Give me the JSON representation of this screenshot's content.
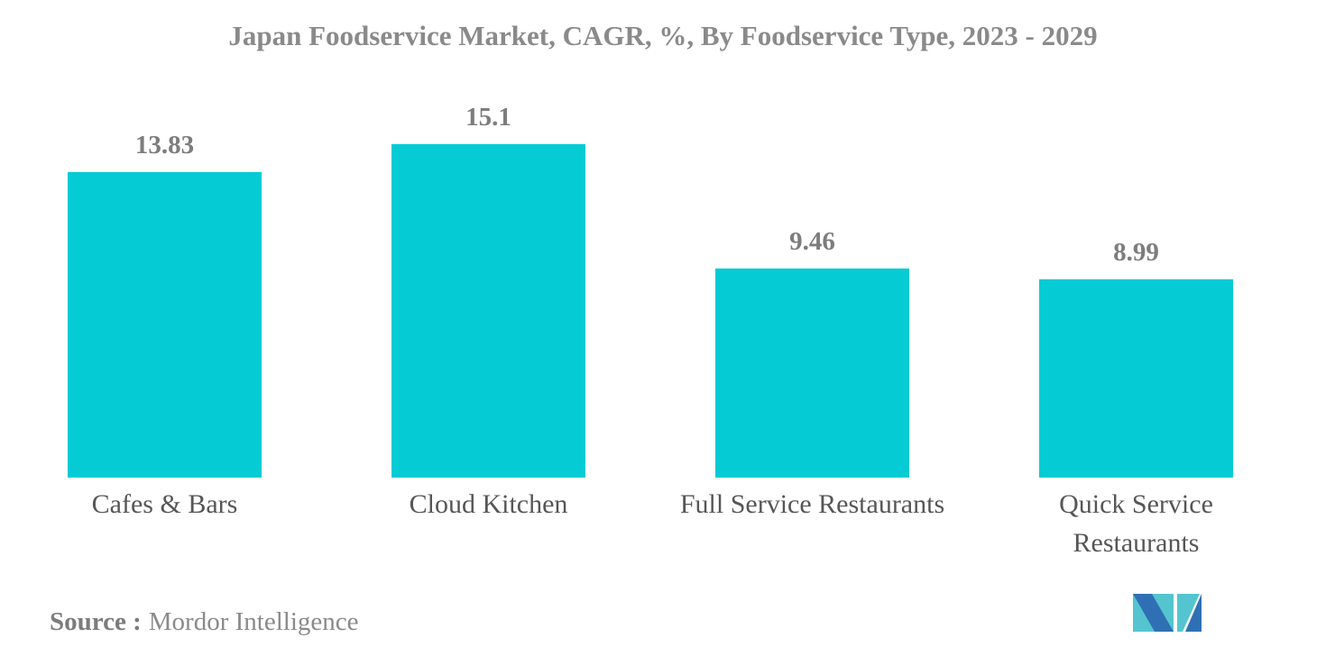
{
  "title": "Japan Foodservice Market, CAGR, %, By Foodservice Type, 2023 - 2029",
  "chart_data": {
    "type": "bar",
    "title": "Japan Foodservice Market, CAGR, %, By Foodservice Type, 2023 - 2029",
    "categories": [
      "Cafes & Bars",
      "Cloud Kitchen",
      "Full Service Restaurants",
      "Quick Service Restaurants"
    ],
    "category_lines": [
      [
        "Cafes & Bars"
      ],
      [
        "Cloud Kitchen"
      ],
      [
        "Full Service Restaurants"
      ],
      [
        "Quick Service",
        "Restaurants"
      ]
    ],
    "values": [
      13.83,
      15.1,
      9.46,
      8.99
    ],
    "value_labels": [
      "13.83",
      "15.1",
      "9.46",
      "8.99"
    ],
    "xlabel": "",
    "ylabel": "",
    "ylim": [
      0,
      17.5
    ],
    "grid": false,
    "legend": false,
    "value_labels_shown": true,
    "bar_color": "#04cbd4"
  },
  "source": {
    "label": "Source :",
    "value": "Mordor Intelligence"
  },
  "logo": {
    "name": "mordor-intelligence-logo",
    "colors": {
      "blue": "#2f70b5",
      "teal": "#54c5cf"
    }
  }
}
